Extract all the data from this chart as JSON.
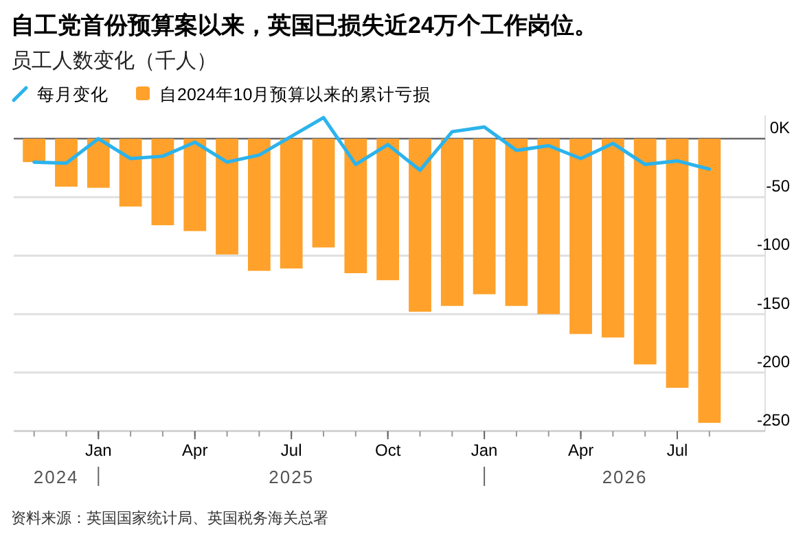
{
  "chart_data": {
    "type": "bar",
    "title": "自工党首份预算案以来，英国已损失近24万个工作岗位。",
    "subtitle": "员工人数变化（千人）",
    "x": [
      "2024-11",
      "2024-12",
      "2025-01",
      "2025-02",
      "2025-03",
      "2025-04",
      "2025-05",
      "2025-06",
      "2025-07",
      "2025-08",
      "2025-09",
      "2025-10",
      "2025-11",
      "2025-12",
      "2026-01",
      "2026-02",
      "2026-03",
      "2026-04",
      "2026-05",
      "2026-06",
      "2026-07",
      "2026-08"
    ],
    "series": [
      {
        "name": "每月变化",
        "type": "line",
        "color": "#2bb3ec",
        "values": [
          -20,
          -21,
          0,
          -17,
          -15,
          -3,
          -20,
          -14,
          2,
          18,
          -22,
          -5,
          -27,
          6,
          10,
          -10,
          -6,
          -17,
          -4,
          -22,
          -19,
          -26
        ]
      },
      {
        "name": "自2024年10月预算以来的累计亏损",
        "color": "#ffa12b",
        "values": [
          -20,
          -41,
          -42,
          -58,
          -74,
          -79,
          -99,
          -113,
          -111,
          -93,
          -115,
          -121,
          -148,
          -143,
          -133,
          -143,
          -150,
          -167,
          -170,
          -193,
          -213,
          -243
        ]
      }
    ],
    "xlim": [
      "2024-10-12",
      "2026-09-23"
    ],
    "xticks": [
      {
        "value": "2024-11",
        "label": null
      },
      {
        "value": "2024-12",
        "label": null
      },
      {
        "value": "2025-01",
        "label": "Jan"
      },
      {
        "value": "2025-02",
        "label": null
      },
      {
        "value": "2025-03",
        "label": null
      },
      {
        "value": "2025-04",
        "label": "Apr"
      },
      {
        "value": "2025-05",
        "label": null
      },
      {
        "value": "2025-06",
        "label": null
      },
      {
        "value": "2025-07",
        "label": "Jul"
      },
      {
        "value": "2025-08",
        "label": null
      },
      {
        "value": "2025-09",
        "label": null
      },
      {
        "value": "2025-10",
        "label": "Oct"
      },
      {
        "value": "2025-11",
        "label": null
      },
      {
        "value": "2025-12",
        "label": null
      },
      {
        "value": "2026-01",
        "label": "Jan"
      },
      {
        "value": "2026-02",
        "label": null
      },
      {
        "value": "2026-03",
        "label": null
      },
      {
        "value": "2026-04",
        "label": "Apr"
      },
      {
        "value": "2026-05",
        "label": null
      },
      {
        "value": "2026-06",
        "label": null
      },
      {
        "value": "2026-07",
        "label": "Jul"
      },
      {
        "value": "2026-08",
        "label": null
      }
    ],
    "ylim": [
      -250,
      20
    ],
    "yticks": [
      {
        "value": 0,
        "label": "0K"
      },
      -50,
      -100,
      -150,
      -200,
      -250
    ],
    "grid": "y",
    "legend": "top left",
    "annotations": [
      "2024",
      "2025",
      "2026",
      "资料来源：英国国家统计局、英国税务海关总署"
    ]
  }
}
